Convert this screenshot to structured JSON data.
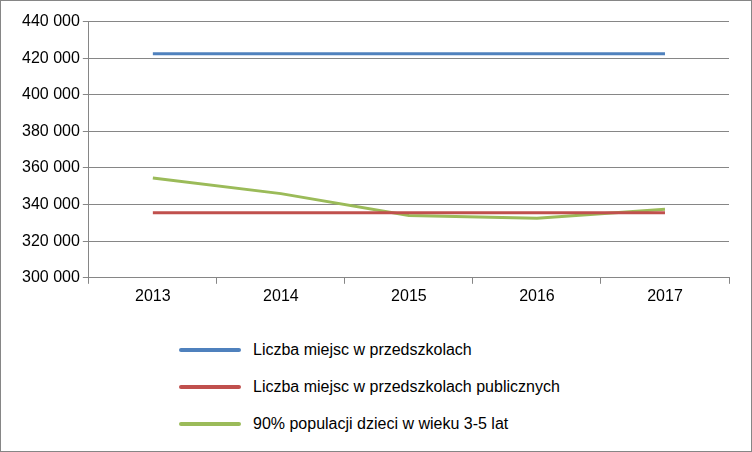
{
  "chart_data": {
    "type": "line",
    "categories": [
      "2013",
      "2014",
      "2015",
      "2016",
      "2017"
    ],
    "series": [
      {
        "name": "Liczba miejsc w przedszkolach",
        "color": "#4f81bd",
        "values": [
          422500,
          422500,
          422500,
          422500,
          422500
        ]
      },
      {
        "name": "Liczba miejsc w przedszkolach publicznych",
        "color": "#c0504d",
        "values": [
          335500,
          335500,
          335500,
          335500,
          335500
        ]
      },
      {
        "name": "90% populacji dzieci w wieku 3-5 lat",
        "color": "#9bbb59",
        "values": [
          354500,
          346000,
          334000,
          332500,
          337500
        ]
      }
    ],
    "ylim": [
      300000,
      440000
    ],
    "yticks": [
      {
        "value": 300000,
        "label": "300 000"
      },
      {
        "value": 320000,
        "label": "320 000"
      },
      {
        "value": 340000,
        "label": "340 000"
      },
      {
        "value": 360000,
        "label": "360 000"
      },
      {
        "value": 380000,
        "label": "380 000"
      },
      {
        "value": 400000,
        "label": "400 000"
      },
      {
        "value": 420000,
        "label": "420 000"
      },
      {
        "value": 440000,
        "label": "440 000"
      }
    ],
    "grid": true,
    "legend": "bottom",
    "marker": "none"
  }
}
